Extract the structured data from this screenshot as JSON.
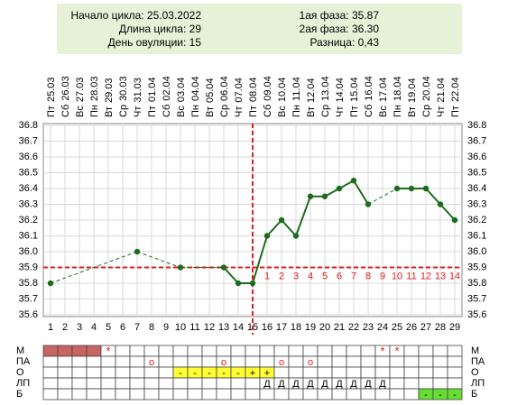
{
  "header": {
    "start": "Начало цикла: 25.03.2022",
    "length": "Длина цикла: 29",
    "ovulation": "День овуляции: 15",
    "phase1": "1ая фаза: 35.87",
    "phase2": "2ая фаза: 36.30",
    "difference": "Разница: 0,43"
  },
  "chart_data": {
    "type": "line",
    "days": [
      1,
      2,
      3,
      4,
      5,
      6,
      7,
      8,
      9,
      10,
      11,
      12,
      13,
      14,
      15,
      16,
      17,
      18,
      19,
      20,
      21,
      22,
      23,
      24,
      25,
      26,
      27,
      28,
      29
    ],
    "weekdays": [
      "Пт",
      "Сб",
      "Вс",
      "Пн",
      "Вт",
      "Ср",
      "Чт",
      "Пт",
      "Сб",
      "Вс",
      "Пн",
      "Вт",
      "Ср",
      "Чт",
      "Пт",
      "Сб",
      "Вс",
      "Пн",
      "Вт",
      "Ср",
      "Чт",
      "Пт",
      "Сб",
      "Вс",
      "Пн",
      "Вт",
      "Ср",
      "Чт",
      "Пт"
    ],
    "dates": [
      "25.03",
      "26.03",
      "27.03",
      "28.03",
      "29.03",
      "30.03",
      "31.03",
      "01.04",
      "02.04",
      "03.04",
      "04.04",
      "05.04",
      "06.04",
      "07.04",
      "08.04",
      "09.04",
      "10.04",
      "11.04",
      "12.04",
      "13.04",
      "14.04",
      "15.04",
      "16.04",
      "17.04",
      "18.04",
      "19.04",
      "20.04",
      "21.04",
      "22.04"
    ],
    "values": [
      35.8,
      null,
      null,
      null,
      null,
      null,
      36.0,
      null,
      null,
      35.9,
      null,
      null,
      35.9,
      35.8,
      35.8,
      36.1,
      36.2,
      36.1,
      36.35,
      36.35,
      36.4,
      36.45,
      36.3,
      null,
      36.4,
      36.4,
      36.4,
      36.3,
      36.2
    ],
    "color": "#1e6b1e",
    "ylim": [
      35.6,
      36.8
    ],
    "yticks": [
      35.6,
      35.7,
      35.8,
      35.9,
      {
        "value": 36.0,
        "label": "36.0"
      },
      36.1,
      36.2,
      36.3,
      36.4,
      36.5,
      36.6,
      36.7,
      36.8
    ],
    "grid": true,
    "coverline": 35.9,
    "ovulation_day": 15,
    "marker_color": "#e02020",
    "post_ovulation_labels": [
      1,
      2,
      3,
      4,
      5,
      6,
      7,
      8,
      9,
      10,
      11,
      12,
      13,
      14
    ]
  },
  "cycle_table": {
    "rows": [
      {
        "label": "М",
        "cells": [
          null,
          null,
          null,
          null,
          "*",
          null,
          null,
          null,
          null,
          null,
          null,
          null,
          null,
          null,
          null,
          null,
          null,
          null,
          null,
          null,
          null,
          null,
          null,
          "*",
          "*",
          null,
          null,
          null,
          null
        ],
        "fill_days": [
          1,
          2,
          3,
          4
        ],
        "fill_color": "#c86464"
      },
      {
        "label": "ПА",
        "cells": [
          null,
          null,
          null,
          null,
          null,
          null,
          null,
          "o",
          null,
          null,
          null,
          null,
          "o",
          null,
          null,
          null,
          "o",
          null,
          "o",
          null,
          null,
          null,
          null,
          null,
          null,
          null,
          null,
          null,
          null
        ],
        "fill_days": [],
        "fill_color": "#ffffff"
      },
      {
        "label": "О",
        "cells": [
          null,
          null,
          null,
          null,
          null,
          null,
          null,
          null,
          null,
          "-",
          "-",
          "-",
          "-",
          "-",
          "+",
          "+",
          null,
          null,
          null,
          null,
          null,
          null,
          null,
          null,
          null,
          null,
          null,
          null,
          null
        ],
        "fill_days": [
          10,
          11,
          12,
          13,
          14,
          15,
          16
        ],
        "fill_color": "#ffff33"
      },
      {
        "label": "ЛП",
        "cells": [
          null,
          null,
          null,
          null,
          null,
          null,
          null,
          null,
          null,
          null,
          null,
          null,
          null,
          null,
          null,
          "Д",
          "Д",
          "Д",
          "Д",
          "Д",
          "Д",
          "Д",
          "Д",
          "Д",
          null,
          null,
          null,
          null,
          null
        ],
        "fill_days": [],
        "fill_color": "#ffffff"
      },
      {
        "label": "Б",
        "cells": [
          null,
          null,
          null,
          null,
          null,
          null,
          null,
          null,
          null,
          null,
          null,
          null,
          null,
          null,
          null,
          null,
          null,
          null,
          null,
          null,
          null,
          null,
          null,
          null,
          null,
          null,
          "-",
          "-",
          "-"
        ],
        "fill_days": [
          27,
          28,
          29
        ],
        "fill_color": "#66dd33"
      }
    ]
  }
}
